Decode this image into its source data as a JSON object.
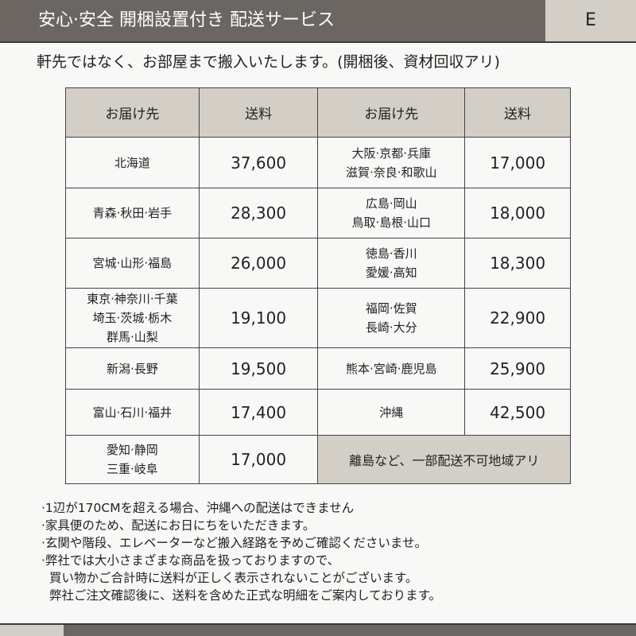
{
  "header": {
    "title": "安心·安全 開梱設置付き 配送サービス",
    "badge": "E"
  },
  "subtitle": "軒先ではなく、お部屋まで搬入いたします。(開梱後、資材回収アリ)",
  "table": {
    "headers": [
      "お届け先",
      "送料",
      "お届け先",
      "送料"
    ],
    "rows": [
      {
        "a1": [
          "北海道"
        ],
        "f1": "37,600",
        "a2": [
          "大阪·京都·兵庫",
          "滋賀·奈良·和歌山"
        ],
        "f2": "17,000"
      },
      {
        "a1": [
          "青森·秋田·岩手"
        ],
        "f1": "28,300",
        "a2": [
          "広島·岡山",
          "鳥取·島根·山口"
        ],
        "f2": "18,000"
      },
      {
        "a1": [
          "宮城·山形·福島"
        ],
        "f1": "26,000",
        "a2": [
          "徳島·香川",
          "愛媛·高知"
        ],
        "f2": "18,300"
      },
      {
        "a1": [
          "東京·神奈川·千葉",
          "埼玉·茨城·栃木",
          "群馬·山梨"
        ],
        "f1": "19,100",
        "a2": [
          "福岡·佐賀",
          "長崎·大分"
        ],
        "f2": "22,900"
      },
      {
        "a1": [
          "新潟·長野"
        ],
        "f1": "19,500",
        "a2": [
          "熊本·宮崎·鹿児島"
        ],
        "f2": "25,900"
      },
      {
        "a1": [
          "富山·石川·福井"
        ],
        "f1": "17,400",
        "a2": [
          "沖縄"
        ],
        "f2": "42,500"
      }
    ],
    "last": {
      "a1": [
        "愛知·静岡",
        "三重·岐阜"
      ],
      "f1": "17,000",
      "note": "離島など、一部配送不可地域アリ"
    }
  },
  "notes": [
    "·1辺が170CMを超える場合、沖縄への配送はできません",
    "·家具便のため、配送にお日にちをいただきます。",
    "·玄関や階段、エレベーターなど搬入経路を予めご確認くださいませ。",
    "·弊社では大小さまざまな商品を扱っておりますので、",
    "買い物かご合計時に送料が正しく表示されないことがございます。",
    "弊社ご注文確認後に、送料を含めた正式な明細をご案内しております。"
  ]
}
